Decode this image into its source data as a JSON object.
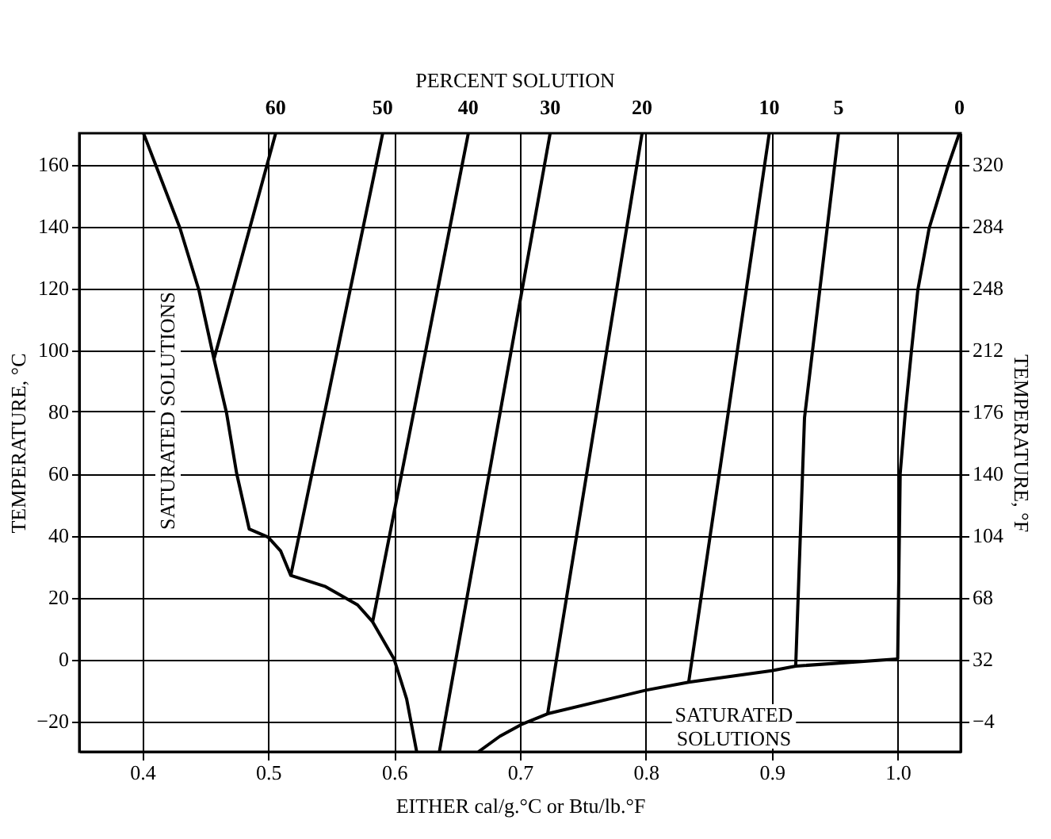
{
  "chart_data": {
    "type": "line",
    "xlabel": "EITHER cal/g.°C or Btu/lb.°F",
    "ylabel": "TEMPERATURE, °C",
    "y2label": "TEMPERATURE, °F",
    "xlim": [
      0.35,
      1.05
    ],
    "xticks": [
      0.4,
      0.5,
      0.6,
      0.7,
      0.8,
      0.9,
      {
        "value": 1.0,
        "label": "1.0"
      }
    ],
    "ylim": [
      -30,
      170
    ],
    "yticks": [
      -20,
      0,
      20,
      40,
      60,
      80,
      100,
      120,
      140,
      160
    ],
    "y2lim": [
      -22,
      338
    ],
    "y2ticks": [
      -4,
      32,
      68,
      104,
      140,
      176,
      212,
      248,
      284,
      320
    ],
    "grid": true,
    "marker": "none",
    "line_style": "solid",
    "series": [
      {
        "name": "60",
        "color": "#000000",
        "x": [
          0.457,
          0.506
        ],
        "values": [
          97,
          170
        ]
      },
      {
        "name": "50",
        "color": "#000000",
        "x": [
          0.518,
          0.591
        ],
        "values": [
          27,
          170
        ]
      },
      {
        "name": "40",
        "color": "#000000",
        "x": [
          0.583,
          0.659
        ],
        "values": [
          12,
          170
        ]
      },
      {
        "name": "30",
        "color": "#000000",
        "x": [
          0.636,
          0.724
        ],
        "values": [
          -30,
          170
        ]
      },
      {
        "name": "20",
        "color": "#000000",
        "x": [
          0.722,
          0.797
        ],
        "values": [
          -17.7,
          170
        ]
      },
      {
        "name": "10",
        "color": "#000000",
        "x": [
          0.834,
          0.898
        ],
        "values": [
          -7.5,
          170
        ]
      },
      {
        "name": "5",
        "color": "#000000",
        "x": [
          0.919,
          0.926,
          0.953
        ],
        "values": [
          -2.3,
          78,
          170
        ]
      },
      {
        "name": "0",
        "color": "#000000",
        "x": [
          1.0,
          1.002,
          1.006,
          1.011,
          1.016,
          1.025,
          1.04,
          1.049
        ],
        "values": [
          0,
          60,
          79.5,
          99.9,
          119.3,
          139.3,
          159.4,
          170
        ]
      },
      {
        "color": "#000000",
        "x": [
          0.618,
          0.61,
          0.6,
          0.583,
          0.571,
          0.545,
          0.518,
          0.51,
          0.5,
          0.485,
          0.475,
          0.467,
          0.457,
          0.445,
          0.43,
          0.401
        ],
        "values": [
          -30,
          -12.9,
          0,
          12,
          17.5,
          23.5,
          27,
          34.9,
          39.4,
          42,
          60,
          79.5,
          97,
          119.3,
          139.3,
          170
        ]
      },
      {
        "color": "#000000",
        "x": [
          0.667,
          0.684,
          0.701,
          0.722,
          0.8,
          0.834,
          0.9,
          0.919,
          1.0
        ],
        "values": [
          -30,
          -25,
          -21.2,
          -17.7,
          -10.1,
          -7.5,
          -3.8,
          -2.3,
          0
        ]
      }
    ],
    "annotations": [
      "PERCENT SOLUTION",
      "SATURATED SOLUTIONS",
      "SATURATED SOLUTIONS"
    ]
  }
}
